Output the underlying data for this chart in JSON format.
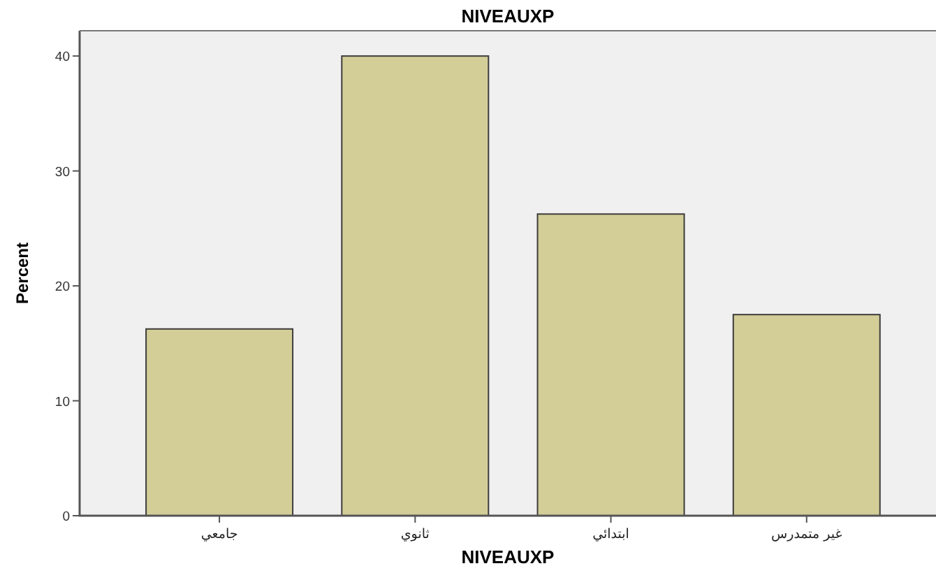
{
  "chart_data": {
    "type": "bar",
    "title": "NIVEAUXP",
    "xlabel": "NIVEAUXP",
    "ylabel": "Percent",
    "categories": [
      "جامعي",
      "ثانوي",
      "ابتدائي",
      "غير متمدرس"
    ],
    "values": [
      16.25,
      40,
      26.25,
      17.5
    ],
    "color": "#d3ce98",
    "ylim": [
      0,
      42.2
    ],
    "yticks": [
      0,
      10,
      20,
      30,
      40
    ],
    "grid": false
  }
}
